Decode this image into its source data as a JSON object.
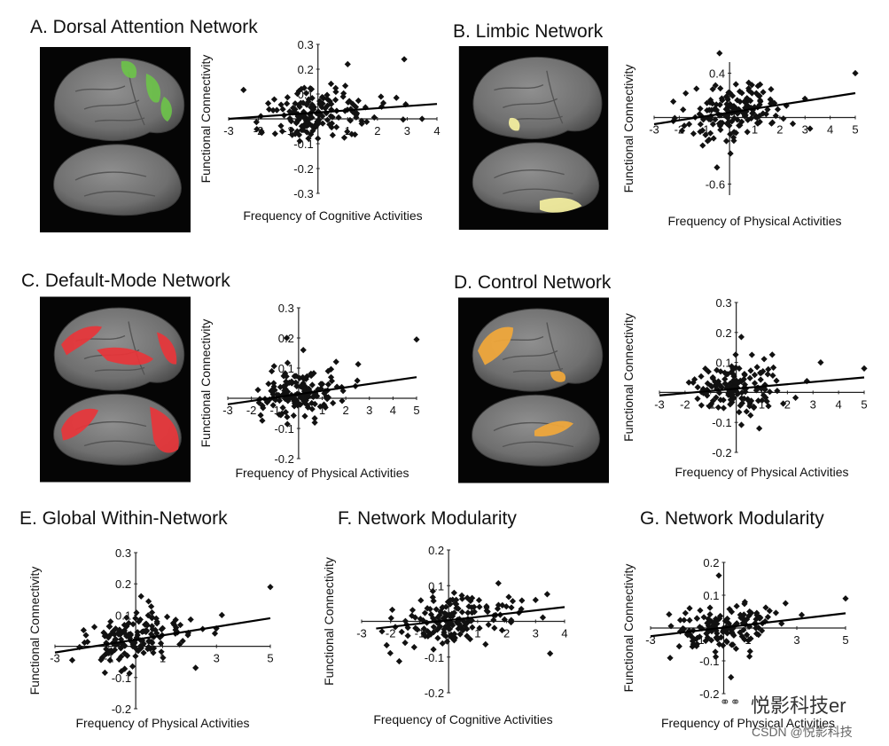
{
  "chart_data": [
    {
      "id": "A",
      "type": "scatter",
      "title": "A. Dorsal Attention Network",
      "xlabel": "Frequency of Cognitive Activities",
      "ylabel": "Functional Connectivity",
      "xlim": [
        -3,
        4
      ],
      "ylim": [
        -0.3,
        0.3
      ],
      "xticks": [
        "-3",
        "-2",
        "-1",
        "0",
        "1",
        "2",
        "3",
        "4"
      ],
      "yticks": [
        "-0.3",
        "-0.2",
        "-0.1",
        "0.1",
        "0.2",
        "0.3"
      ],
      "trendline": {
        "x": [
          -3,
          4
        ],
        "y": [
          0.0,
          0.06
        ]
      },
      "brain_highlight": "#6cc24a",
      "n_points": 160,
      "seed": 11,
      "trend_slope": 0.0086,
      "trend_intercept": 0.026,
      "outliers": [
        [
          2.9,
          0.24
        ],
        [
          1.0,
          0.22
        ],
        [
          -1.9,
          -0.05
        ],
        [
          3.5,
          0.0
        ]
      ]
    },
    {
      "id": "B",
      "type": "scatter",
      "title": "B. Limbic Network",
      "xlabel": "Frequency of Physical Activities",
      "ylabel": "Functional Connectivity",
      "xlim": [
        -3,
        5
      ],
      "ylim": [
        -0.7,
        0.5
      ],
      "xticks": [
        "-3",
        "-2",
        "-1",
        "0",
        "1",
        "2",
        "3",
        "4",
        "5"
      ],
      "yticks": [
        "-0.6",
        "0.4"
      ],
      "trendline": {
        "x": [
          -3,
          5
        ],
        "y": [
          -0.06,
          0.22
        ]
      },
      "brain_highlight": "#f5f0a0",
      "n_points": 160,
      "seed": 23,
      "trend_slope": 0.035,
      "trend_intercept": 0.045,
      "outliers": [
        [
          5.0,
          0.4
        ],
        [
          -0.4,
          0.58
        ],
        [
          -0.5,
          -0.45
        ],
        [
          3.2,
          -0.1
        ]
      ]
    },
    {
      "id": "C",
      "type": "scatter",
      "title": "C. Default-Mode Network",
      "xlabel": "Frequency of Physical Activities",
      "ylabel": "Functional Connectivity",
      "xlim": [
        -3,
        5
      ],
      "ylim": [
        -0.2,
        0.3
      ],
      "xticks": [
        "-3",
        "-2",
        "-1",
        "0",
        "1",
        "2",
        "3",
        "4",
        "5"
      ],
      "yticks": [
        "-0.2",
        "-0.1",
        "0.1",
        "0.2",
        "0.3"
      ],
      "trendline": {
        "x": [
          -3,
          5
        ],
        "y": [
          -0.02,
          0.07
        ]
      },
      "brain_highlight": "#e8353a",
      "n_points": 150,
      "seed": 37,
      "trend_slope": 0.011,
      "trend_intercept": 0.013,
      "outliers": [
        [
          5.0,
          0.195
        ],
        [
          -0.5,
          0.2
        ],
        [
          0.2,
          0.16
        ]
      ]
    },
    {
      "id": "D",
      "type": "scatter",
      "title": "D. Control Network",
      "xlabel": "Frequency of Physical Activities",
      "ylabel": "Functional Connectivity",
      "xlim": [
        -3,
        5
      ],
      "ylim": [
        -0.2,
        0.3
      ],
      "xticks": [
        "-3",
        "-2",
        "-1",
        "0",
        "1",
        "2",
        "3",
        "4",
        "5"
      ],
      "yticks": [
        "-0.2",
        "-0.1",
        "0.1",
        "0.2",
        "0.3"
      ],
      "trendline": {
        "x": [
          -3,
          5
        ],
        "y": [
          -0.01,
          0.05
        ]
      },
      "brain_highlight": "#f2a83a",
      "n_points": 150,
      "seed": 41,
      "trend_slope": 0.0075,
      "trend_intercept": 0.012,
      "outliers": [
        [
          5.0,
          0.08
        ],
        [
          0.2,
          0.185
        ],
        [
          3.3,
          0.1
        ],
        [
          0.9,
          -0.12
        ]
      ]
    },
    {
      "id": "E",
      "type": "scatter",
      "title": "E. Global Within-Network",
      "xlabel": "Frequency of Physical Activities",
      "ylabel": "Functional Connectivity",
      "xlim": [
        -3,
        5
      ],
      "ylim": [
        -0.2,
        0.3
      ],
      "xticks": [
        "-3",
        "-1",
        "1",
        "3",
        "5"
      ],
      "yticks": [
        "-0.2",
        "-0.1",
        "0.1",
        "0.2",
        "0.3"
      ],
      "trendline": {
        "x": [
          -3,
          5
        ],
        "y": [
          -0.02,
          0.09
        ]
      },
      "n_points": 150,
      "seed": 53,
      "trend_slope": 0.0138,
      "trend_intercept": 0.021,
      "outliers": [
        [
          5.0,
          0.19
        ],
        [
          0.2,
          0.16
        ],
        [
          3.2,
          0.1
        ]
      ]
    },
    {
      "id": "F",
      "type": "scatter",
      "title": "F. Network Modularity",
      "xlabel": "Frequency of Cognitive Activities",
      "ylabel": "Functional Connectivity",
      "xlim": [
        -3,
        4
      ],
      "ylim": [
        -0.2,
        0.2
      ],
      "xticks": [
        "-3",
        "-2",
        "-1",
        "0",
        "1",
        "2",
        "3",
        "4"
      ],
      "yticks": [
        "-0.2",
        "-0.1",
        "0.1",
        "0.2"
      ],
      "trendline": {
        "x": [
          -2.5,
          4
        ],
        "y": [
          -0.02,
          0.04
        ]
      },
      "n_points": 160,
      "seed": 67,
      "trend_slope": 0.0092,
      "trend_intercept": 0.003,
      "outliers": [
        [
          3.5,
          -0.09
        ],
        [
          3.0,
          0.06
        ],
        [
          -1.5,
          -0.06
        ]
      ]
    },
    {
      "id": "G",
      "type": "scatter",
      "title": "G. Network Modularity",
      "xlabel": "Frequency of Physical Activities",
      "ylabel": "Functional Connectivity",
      "xlim": [
        -3,
        5
      ],
      "ylim": [
        -0.2,
        0.2
      ],
      "xticks": [
        "-3",
        "-1",
        "1",
        "3",
        "5"
      ],
      "yticks": [
        "-0.2",
        "-0.1",
        "0.1",
        "0.2"
      ],
      "trendline": {
        "x": [
          -3,
          5
        ],
        "y": [
          -0.025,
          0.045
        ]
      },
      "n_points": 150,
      "seed": 79,
      "trend_slope": 0.0088,
      "trend_intercept": 0.002,
      "outliers": [
        [
          5.0,
          0.09
        ],
        [
          -0.2,
          0.16
        ],
        [
          0.3,
          -0.15
        ],
        [
          3.2,
          0.04
        ]
      ]
    }
  ],
  "watermark": {
    "wechat_name": "悦影科技er",
    "csdn_credit": "CSDN @悦影科技"
  },
  "colors": {
    "marker": "#111111",
    "axis": "#222222",
    "brain_background": "#050505",
    "cortex": "#7a7a7a"
  }
}
